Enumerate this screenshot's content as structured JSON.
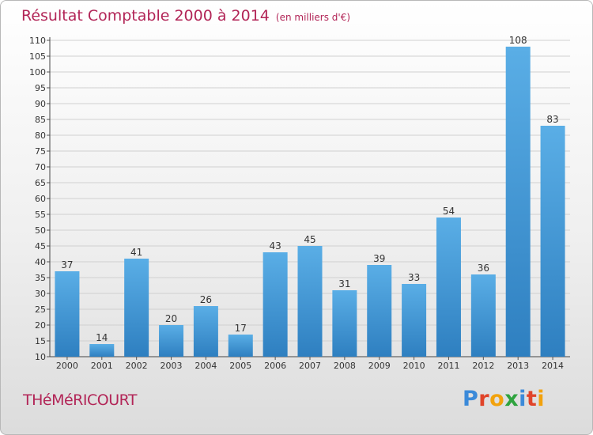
{
  "header": {
    "title": "Résultat Comptable 2000 à 2014",
    "unit": "(en milliers d'€)"
  },
  "footer": {
    "place": "THéMéRICOURT",
    "brand_letters": [
      {
        "ch": "P",
        "color": "#3b8ad9"
      },
      {
        "ch": "r",
        "color": "#e0442a"
      },
      {
        "ch": "o",
        "color": "#f2a20d"
      },
      {
        "ch": "x",
        "color": "#2fa33e"
      },
      {
        "ch": "i",
        "color": "#3b8ad9"
      },
      {
        "ch": "t",
        "color": "#e0442a"
      },
      {
        "ch": "i",
        "color": "#f2a20d"
      }
    ]
  },
  "chart_data": {
    "type": "bar",
    "title": "Résultat Comptable 2000 à 2014",
    "ylabel": "(en milliers d'€)",
    "xlabel": "",
    "categories": [
      "2000",
      "2001",
      "2002",
      "2003",
      "2004",
      "2005",
      "2006",
      "2007",
      "2008",
      "2009",
      "2010",
      "2011",
      "2012",
      "2013",
      "2014"
    ],
    "values": [
      37,
      14,
      41,
      20,
      26,
      17,
      43,
      45,
      31,
      39,
      33,
      54,
      36,
      108,
      83
    ],
    "ylim": [
      10,
      110
    ],
    "yticks": [
      10,
      15,
      20,
      25,
      30,
      35,
      40,
      45,
      50,
      55,
      60,
      65,
      70,
      75,
      80,
      85,
      90,
      95,
      100,
      105,
      110
    ],
    "grid": true,
    "bar_color_top": "#5aaee6",
    "bar_color_bottom": "#2e7fc0"
  }
}
